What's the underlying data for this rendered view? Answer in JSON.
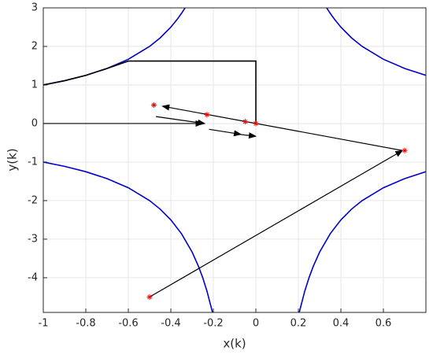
{
  "chart_data": {
    "type": "line",
    "xlabel": "x(k)",
    "ylabel": "y(k)",
    "xlim": [
      -1,
      0.8
    ],
    "ylim": [
      -4.9,
      3
    ],
    "xticks": [
      -1,
      -0.8,
      -0.6,
      -0.4,
      -0.2,
      0,
      0.2,
      0.4,
      0.6
    ],
    "yticks": [
      -4,
      -3,
      -2,
      -1,
      0,
      1,
      2,
      3
    ],
    "grid": true,
    "lines": [
      {
        "color": "#0000cc",
        "x": [
          -1,
          -0.9,
          -0.8,
          -0.7,
          -0.6,
          -0.5,
          -0.45,
          -0.4,
          -0.37,
          -0.35,
          -0.333
        ],
        "y": [
          1,
          1.111,
          1.25,
          1.429,
          1.667,
          2,
          2.222,
          2.5,
          2.703,
          2.857,
          3
        ]
      },
      {
        "color": "#0000cc",
        "x": [
          0.333,
          0.35,
          0.37,
          0.4,
          0.45,
          0.5,
          0.6,
          0.7,
          0.8
        ],
        "y": [
          3,
          2.857,
          2.703,
          2.5,
          2.222,
          2,
          1.667,
          1.429,
          1.25
        ]
      },
      {
        "color": "#0000cc",
        "x": [
          -1,
          -0.9,
          -0.8,
          -0.7,
          -0.6,
          -0.5,
          -0.45,
          -0.4,
          -0.35,
          -0.3,
          -0.27,
          -0.25,
          -0.23,
          -0.204
        ],
        "y": [
          -1,
          -1.111,
          -1.25,
          -1.429,
          -1.667,
          -2,
          -2.222,
          -2.5,
          -2.857,
          -3.333,
          -3.704,
          -4,
          -4.348,
          -4.9
        ]
      },
      {
        "color": "#0000cc",
        "x": [
          0.204,
          0.23,
          0.25,
          0.27,
          0.3,
          0.35,
          0.4,
          0.45,
          0.5,
          0.6,
          0.7,
          0.8
        ],
        "y": [
          -4.9,
          -4.348,
          -4,
          -3.704,
          -3.333,
          -2.857,
          -2.5,
          -2.222,
          -2,
          -1.667,
          -1.429,
          -1.25
        ]
      },
      {
        "color": "#000000",
        "x": [
          -1,
          -0.9,
          -0.8,
          -0.7,
          -0.6,
          0,
          0
        ],
        "y": [
          1,
          1.111,
          1.25,
          1.429,
          1.62,
          1.62,
          0
        ]
      }
    ],
    "arrows": [
      {
        "color": "#000000",
        "x": [
          -1,
          -0.25
        ],
        "y": [
          0,
          0
        ]
      },
      {
        "color": "#000000",
        "x": [
          -0.47,
          -0.24
        ],
        "y": [
          0.18,
          0.0
        ]
      },
      {
        "color": "#000000",
        "x": [
          -0.22,
          -0.07
        ],
        "y": [
          -0.15,
          -0.28
        ]
      },
      {
        "color": "#000000",
        "x": [
          -0.08,
          0.0
        ],
        "y": [
          -0.28,
          -0.33
        ]
      },
      {
        "color": "#000000",
        "x": [
          -0.5,
          0.69
        ],
        "y": [
          -4.5,
          -0.7
        ]
      },
      {
        "color": "#000000",
        "x": [
          0.69,
          -0.44
        ],
        "y": [
          -0.7,
          0.45
        ]
      }
    ],
    "points": {
      "color": "#ff0000",
      "x": [
        -0.48,
        -0.23,
        -0.05,
        0,
        0.7,
        -0.5
      ],
      "y": [
        0.48,
        0.23,
        0.05,
        0,
        -0.7,
        -4.5
      ]
    }
  }
}
